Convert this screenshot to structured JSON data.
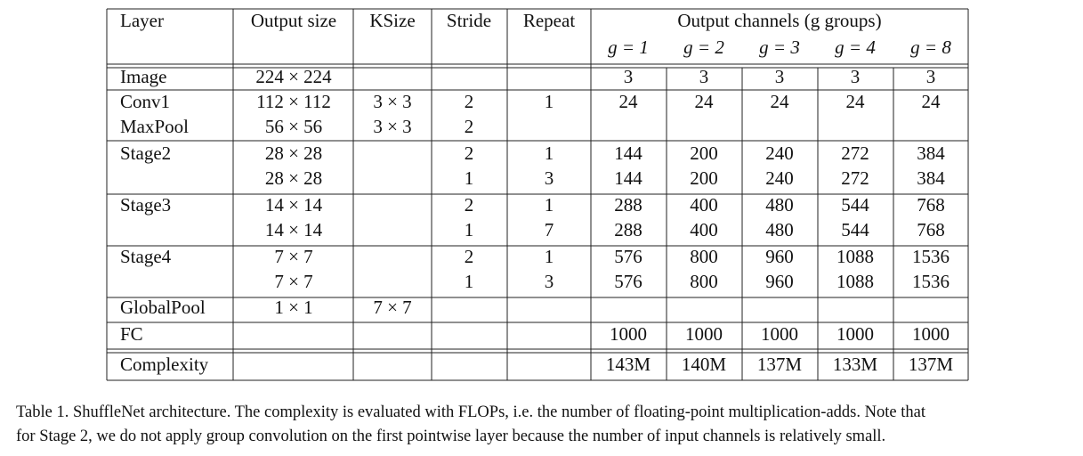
{
  "table": {
    "header": [
      "Layer",
      "Output size",
      "KSize",
      "Stride",
      "Repeat",
      "Output channels (g groups)"
    ],
    "groups": [
      "g = 1",
      "g = 2",
      "g = 3",
      "g = 4",
      "g = 8"
    ],
    "rows": [
      [
        "Image",
        "224 × 224",
        null,
        null,
        null,
        3,
        3,
        3,
        3,
        3
      ],
      [
        "Conv1",
        "112 × 112",
        "3 × 3",
        2,
        1,
        24,
        24,
        24,
        24,
        24
      ],
      [
        "MaxPool",
        "56 × 56",
        "3 × 3",
        2,
        null,
        null,
        null,
        null,
        null,
        null
      ],
      [
        "Stage2",
        "28 × 28",
        null,
        2,
        1,
        144,
        200,
        240,
        272,
        384
      ],
      [
        null,
        "28 × 28",
        null,
        1,
        3,
        144,
        200,
        240,
        272,
        384
      ],
      [
        "Stage3",
        "14 × 14",
        null,
        2,
        1,
        288,
        400,
        480,
        544,
        768
      ],
      [
        null,
        "14 × 14",
        null,
        1,
        7,
        288,
        400,
        480,
        544,
        768
      ],
      [
        "Stage4",
        "7 × 7",
        null,
        2,
        1,
        576,
        800,
        960,
        1088,
        1536
      ],
      [
        null,
        "7 × 7",
        null,
        1,
        3,
        576,
        800,
        960,
        1088,
        1536
      ],
      [
        "GlobalPool",
        "1 × 1",
        "7 × 7",
        null,
        null,
        null,
        null,
        null,
        null,
        null
      ],
      [
        "FC",
        null,
        null,
        null,
        null,
        1000,
        1000,
        1000,
        1000,
        1000
      ],
      [
        "Complexity",
        null,
        null,
        null,
        null,
        "143M",
        "140M",
        "137M",
        "133M",
        "137M"
      ]
    ]
  },
  "caption": [
    "Table 1. ShuffleNet architecture. The complexity is evaluated with FLOPs, i.e. the number of floating-point multiplication-adds. Note that",
    "for Stage 2, we do not apply group convolution on the first pointwise layer because the number of input channels is relatively small."
  ]
}
